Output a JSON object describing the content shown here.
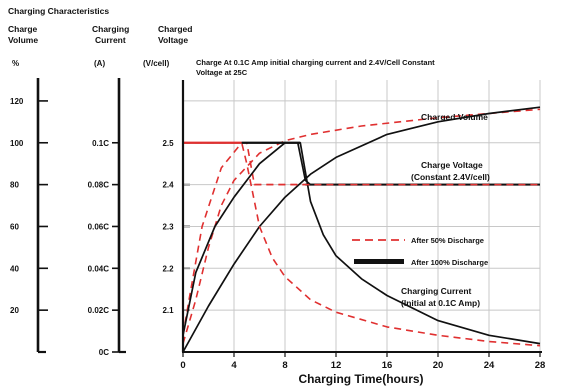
{
  "chart_data": {
    "type": "line",
    "title": "Charging Characteristics",
    "annotation": [
      "Charge At 0.1C Amp initial charging current and 2.4V/Cell Constant",
      "Voltage at 25C"
    ],
    "xlabel": "Charging Time(hours)",
    "xlim": [
      0,
      28
    ],
    "x_ticks": [
      "0",
      "4",
      "8",
      "12",
      "16",
      "20",
      "24",
      "28"
    ],
    "grid": true,
    "axes": [
      {
        "header": [
          "Charge",
          "Volume"
        ],
        "unit": "%",
        "range": [
          0,
          130
        ],
        "ticks": [
          {
            "v": 120,
            "label": "120"
          },
          {
            "v": 100,
            "label": "100"
          },
          {
            "v": 80,
            "label": "80"
          },
          {
            "v": 60,
            "label": "60"
          },
          {
            "v": 40,
            "label": "40"
          },
          {
            "v": 20,
            "label": "20"
          }
        ]
      },
      {
        "header": [
          "Charging",
          "Current"
        ],
        "unit": "(A)",
        "range": [
          0,
          0.13
        ],
        "ticks": [
          {
            "v": 0.1,
            "label": "0.1C"
          },
          {
            "v": 0.08,
            "label": "0.08C"
          },
          {
            "v": 0.06,
            "label": "0.06C"
          },
          {
            "v": 0.04,
            "label": "0.04C"
          },
          {
            "v": 0.02,
            "label": "0.02C"
          },
          {
            "v": 0,
            "label": "0C"
          }
        ]
      },
      {
        "header": [
          "Charged",
          "Voltage"
        ],
        "unit": "(V/cell)",
        "range": [
          2.0,
          2.65
        ],
        "ticks": [
          {
            "v": 2.5,
            "label": "2.5"
          },
          {
            "v": 2.4,
            "label": "2.4"
          },
          {
            "v": 2.3,
            "label": "2.3"
          },
          {
            "v": 2.2,
            "label": "2.2"
          },
          {
            "v": 2.1,
            "label": "2.1"
          }
        ]
      }
    ],
    "series": [
      {
        "name": "After 50% Discharge",
        "style": "dashed",
        "color": "#e03030",
        "curve": "Charged Volume",
        "unit": "%",
        "x": [
          0,
          1,
          2,
          3,
          4,
          6,
          8,
          10,
          14,
          20,
          28
        ],
        "y": [
          4,
          25,
          50,
          70,
          82,
          95,
          101,
          104,
          108,
          112,
          116
        ]
      },
      {
        "name": "After 100% Discharge",
        "style": "solid",
        "color": "#111111",
        "curve": "Charged Volume",
        "unit": "%",
        "x": [
          0,
          2,
          4,
          6,
          8,
          10,
          12,
          16,
          20,
          24,
          28
        ],
        "y": [
          0,
          22,
          42,
          60,
          74,
          85,
          93,
          104,
          110,
          114,
          117
        ]
      },
      {
        "name": "After 50% Discharge",
        "style": "dashed",
        "color": "#e03030",
        "curve": "Charge Voltage",
        "unit": "V/cell",
        "x": [
          0,
          0.5,
          1.5,
          3,
          4.6,
          5,
          5.6,
          6.5,
          8,
          10,
          12,
          16,
          20,
          24,
          28
        ],
        "y": [
          2.04,
          2.13,
          2.3,
          2.44,
          2.5,
          2.5,
          2.4,
          2.4,
          2.4,
          2.4,
          2.4,
          2.4,
          2.4,
          2.4,
          2.4
        ]
      },
      {
        "name": "After 100% Discharge",
        "style": "solid",
        "color": "#111111",
        "curve": "Charge Voltage",
        "unit": "V/cell",
        "x": [
          0,
          1,
          2.5,
          4,
          6,
          8,
          9,
          9.6,
          10,
          12,
          16,
          20,
          24,
          28
        ],
        "y": [
          2.04,
          2.19,
          2.3,
          2.37,
          2.45,
          2.5,
          2.5,
          2.41,
          2.4,
          2.4,
          2.4,
          2.4,
          2.4,
          2.4
        ]
      },
      {
        "name": "After 50% Discharge",
        "style": "dashed",
        "color": "#e03030",
        "curve": "Charging Current",
        "unit": "C",
        "x": [
          0,
          4.6,
          5,
          6,
          7,
          8,
          10,
          12,
          16,
          20,
          24,
          28
        ],
        "y": [
          0.1,
          0.1,
          0.09,
          0.06,
          0.045,
          0.036,
          0.025,
          0.019,
          0.012,
          0.008,
          0.005,
          0.003
        ]
      },
      {
        "name": "After 100% Discharge",
        "style": "solid",
        "color": "#111111",
        "curve": "Charging Current",
        "unit": "C",
        "x": [
          0,
          9.2,
          10,
          11,
          12,
          14,
          16,
          20,
          24,
          28
        ],
        "y": [
          0.1,
          0.1,
          0.072,
          0.056,
          0.046,
          0.035,
          0.027,
          0.015,
          0.008,
          0.004
        ]
      }
    ],
    "curve_labels": [
      {
        "text": [
          "Charged Volume"
        ]
      },
      {
        "text": [
          "Charge Voltage",
          "(Constant 2.4V/cell)"
        ]
      },
      {
        "text": [
          "Charging Current",
          "(Initial at 0.1C Amp)"
        ]
      }
    ],
    "legend": {
      "placement": "bottom-right",
      "entries": [
        {
          "label": "After 50% Discharge",
          "style": "dashed",
          "color": "#e03030"
        },
        {
          "label": "After 100% Discharge",
          "style": "solid",
          "color": "#111111"
        }
      ]
    }
  }
}
